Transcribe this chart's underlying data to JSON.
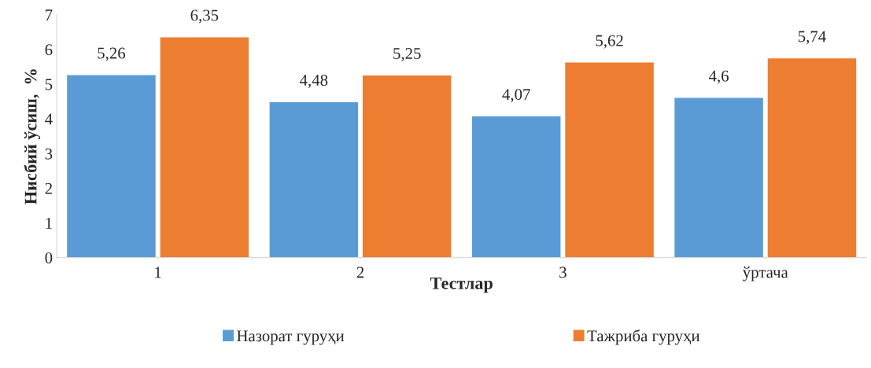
{
  "chart_data": {
    "type": "bar",
    "xlabel": "Тестлар",
    "ylabel": "Нисбий ўсиш,  %",
    "categories": [
      "1",
      "2",
      "3",
      "ўртача"
    ],
    "series": [
      {
        "name": "Назорат гуруҳи",
        "color": "#5b9bd5",
        "values": [
          5.26,
          4.48,
          4.07,
          4.6
        ],
        "value_labels": [
          "5,26",
          "4,48",
          "4,07",
          "4,6"
        ]
      },
      {
        "name": "Тажриба гуруҳи",
        "color": "#ed7d31",
        "values": [
          6.35,
          5.25,
          5.62,
          5.74
        ],
        "value_labels": [
          "6,35",
          "5,25",
          "5,62",
          "5,74"
        ]
      }
    ],
    "ylim": [
      0,
      7
    ],
    "yticks": [
      0,
      1,
      2,
      3,
      4,
      5,
      6,
      7
    ],
    "grid": false,
    "legend": "bottom"
  }
}
